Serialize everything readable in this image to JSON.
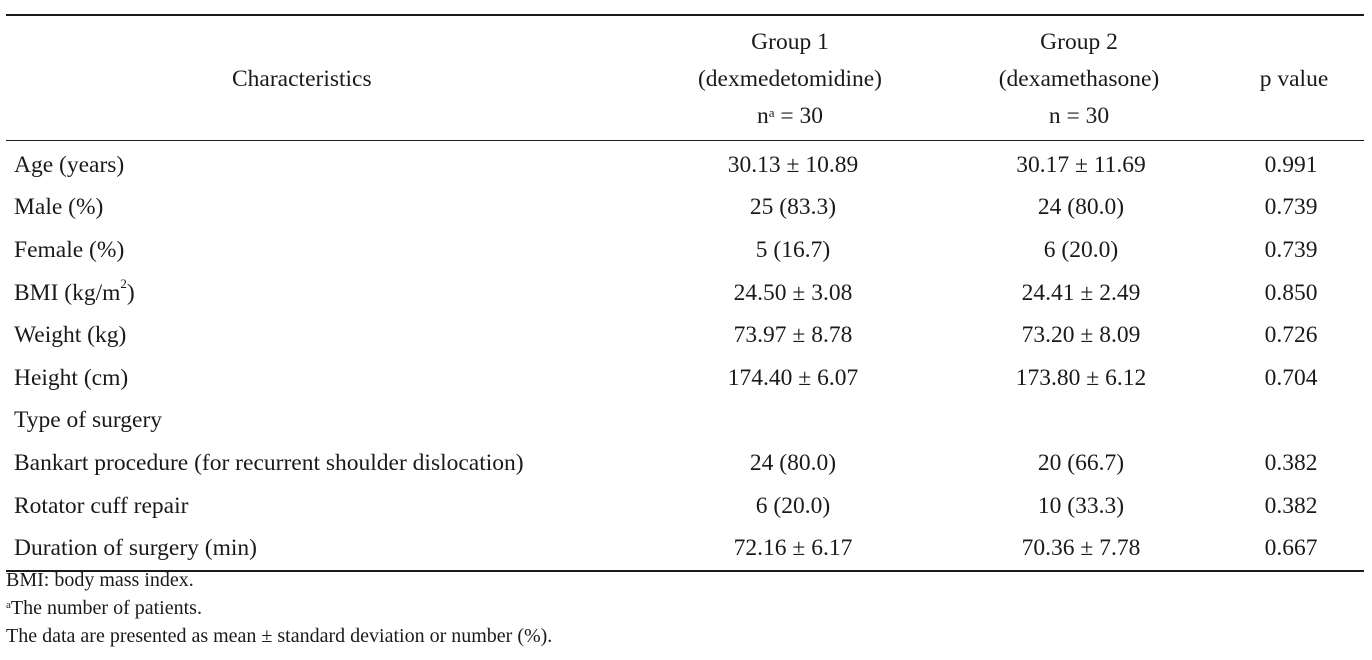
{
  "table": {
    "headers": {
      "characteristics": "Characteristics",
      "group1_line1": "Group 1",
      "group1_line2": "(dexmedetomidine)",
      "group1_n_prefix": "n",
      "group1_n_sup": "a",
      "group1_n_value": " = 30",
      "group2_line1": "Group 2",
      "group2_line2": "(dexamethasone)",
      "group2_n": "n = 30",
      "p_value": "p value"
    },
    "rows": [
      {
        "label": "Age (years)",
        "g1": "30.13 ± 10.89",
        "g2": "30.17 ± 11.69",
        "p": "0.991"
      },
      {
        "label": "Male (%)",
        "g1": "25 (83.3)",
        "g2": "24 (80.0)",
        "p": "0.739"
      },
      {
        "label": "Female (%)",
        "g1": "5 (16.7)",
        "g2": "6 (20.0)",
        "p": "0.739"
      },
      {
        "label_prefix": "BMI (kg/m",
        "label_sup": "2",
        "label_suffix": ")",
        "g1": "24.50 ± 3.08",
        "g2": "24.41 ± 2.49",
        "p": "0.850"
      },
      {
        "label": "Weight (kg)",
        "g1": "73.97 ± 8.78",
        "g2": "73.20 ± 8.09",
        "p": "0.726"
      },
      {
        "label": "Height (cm)",
        "g1": "174.40 ± 6.07",
        "g2": "173.80 ± 6.12",
        "p": "0.704"
      },
      {
        "label": "Type of surgery",
        "g1": "",
        "g2": "",
        "p": ""
      },
      {
        "label": "Bankart procedure (for recurrent shoulder dislocation)",
        "g1": "24 (80.0)",
        "g2": "20 (66.7)",
        "p": "0.382"
      },
      {
        "label": "Rotator cuff repair",
        "g1": "6 (20.0)",
        "g2": "10 (33.3)",
        "p": "0.382"
      },
      {
        "label": "Duration of surgery (min)",
        "g1": "72.16 ± 6.17",
        "g2": "70.36 ± 7.78",
        "p": "0.667"
      }
    ]
  },
  "notes": {
    "bmi": "BMI: body mass index.",
    "a_sup": "a",
    "a_text": "The number of patients.",
    "data": "The data are presented as mean ± standard deviation or number (%)."
  }
}
